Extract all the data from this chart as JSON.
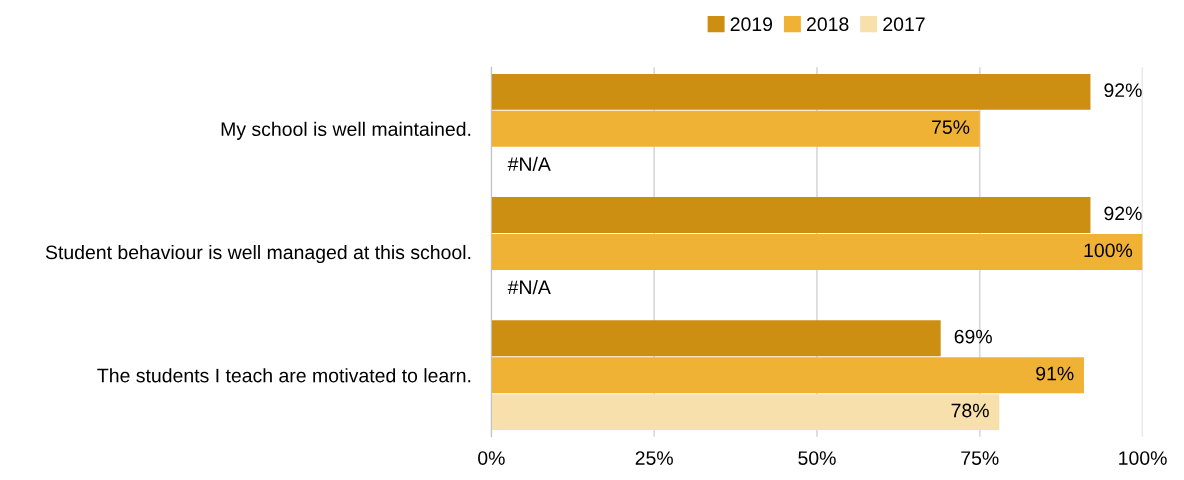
{
  "chart_data": {
    "type": "bar",
    "orientation": "horizontal",
    "categories": [
      "My school is well maintained.",
      "Student behaviour is well managed at this school.",
      "The students I teach are motivated to learn."
    ],
    "series": [
      {
        "name": "2019",
        "color": "#cd8f12",
        "values": [
          92,
          92,
          69
        ],
        "value_labels": [
          "92%",
          "92%",
          "69%"
        ]
      },
      {
        "name": "2018",
        "color": "#f0b235",
        "values": [
          75,
          100,
          91
        ],
        "value_labels": [
          "75%",
          "100%",
          "91%"
        ]
      },
      {
        "name": "2017",
        "color": "#f7e0ac",
        "values": [
          null,
          null,
          78
        ],
        "value_labels": [
          "#N/A",
          "#N/A",
          "78%"
        ]
      }
    ],
    "xlim": [
      0,
      100
    ],
    "xticks": [
      {
        "value": 0,
        "label": "0%"
      },
      {
        "value": 25,
        "label": "25%"
      },
      {
        "value": 50,
        "label": "50%"
      },
      {
        "value": 75,
        "label": "75%"
      },
      {
        "value": 100,
        "label": "100%"
      }
    ],
    "grid": "x",
    "legend": "top"
  }
}
